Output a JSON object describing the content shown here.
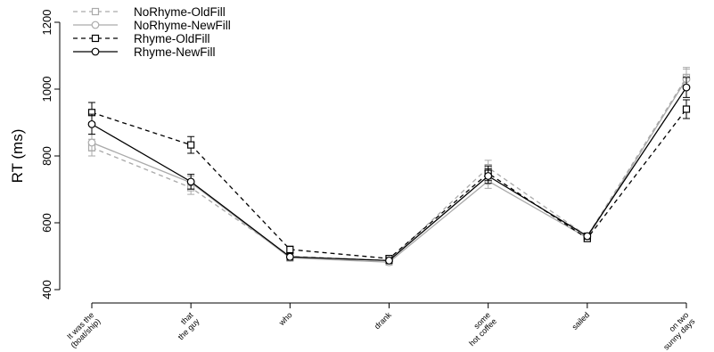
{
  "chart_data": {
    "type": "line",
    "title": "",
    "xlabel": "",
    "ylabel": "RT (ms)",
    "ylim": [
      400,
      1200
    ],
    "yticks": [
      "400",
      "600",
      "800",
      "1000",
      "1200"
    ],
    "categories": [
      [
        "It was the",
        "(boat/ship)"
      ],
      [
        "that",
        "the guy"
      ],
      [
        "who"
      ],
      [
        "drank"
      ],
      [
        "some",
        "hot coffee"
      ],
      [
        "sailed"
      ],
      [
        "on two",
        "sunny days"
      ]
    ],
    "grid": false,
    "legend": "top-left",
    "series": [
      {
        "name": "NoRhyme-OldFill",
        "color": "#aaaaaa",
        "dashed": true,
        "marker": "square",
        "values": [
          825,
          705,
          500,
          487,
          765,
          560,
          1035
        ],
        "errors": [
          25,
          20,
          10,
          9,
          22,
          9,
          30
        ]
      },
      {
        "name": "NoRhyme-NewFill",
        "color": "#aaaaaa",
        "dashed": false,
        "marker": "circle",
        "values": [
          840,
          720,
          495,
          482,
          725,
          555,
          1030
        ],
        "errors": [
          25,
          20,
          10,
          9,
          22,
          9,
          30
        ]
      },
      {
        "name": "Rhyme-OldFill",
        "color": "#000000",
        "dashed": true,
        "marker": "square",
        "values": [
          930,
          833,
          520,
          493,
          748,
          553,
          940
        ],
        "errors": [
          30,
          25,
          10,
          9,
          22,
          9,
          28
        ]
      },
      {
        "name": "Rhyme-NewFill",
        "color": "#000000",
        "dashed": false,
        "marker": "circle",
        "values": [
          895,
          723,
          498,
          487,
          740,
          560,
          1005
        ],
        "errors": [
          30,
          22,
          10,
          9,
          22,
          9,
          30
        ]
      }
    ]
  }
}
